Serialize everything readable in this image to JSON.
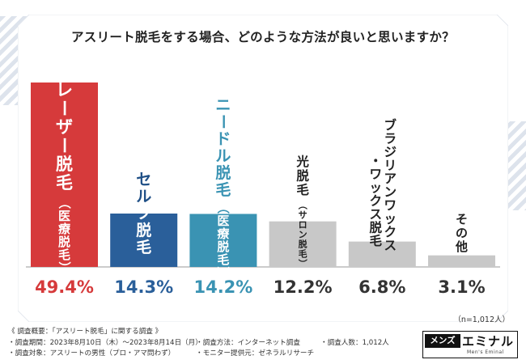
{
  "chart_data": {
    "type": "bar",
    "title": "アスリート脱毛をする場合、どのような方法が良いと思いますか？",
    "categories": [
      "レーザー脱毛",
      "セルフ脱毛",
      "ニードル脱毛",
      "光脱毛",
      "ブラジリアンワックス・ワックス脱毛",
      "その他"
    ],
    "category_labels": [
      {
        "main": "レーザー脱毛",
        "sub": "（医療脱毛）"
      },
      {
        "main": "セルフ脱毛",
        "sub": ""
      },
      {
        "main": "ニードル脱毛",
        "sub": "（医療脱毛）"
      },
      {
        "main": "光脱毛",
        "sub": "（サロン脱毛）"
      },
      {
        "main": "ブラジリアンワックス・ワックス脱毛",
        "sub": ""
      },
      {
        "main": "その他",
        "sub": ""
      }
    ],
    "values": [
      49.4,
      14.3,
      14.2,
      12.2,
      6.8,
      3.1
    ],
    "value_labels": [
      "49.4%",
      "14.3%",
      "14.2%",
      "12.2%",
      "6.8%",
      "3.1%"
    ],
    "colors": [
      "#d63a3b",
      "#2a5f9a",
      "#3a93b3",
      "#c8c8c8",
      "#c8c8c8",
      "#c8c8c8"
    ],
    "value_colors": [
      "#d63a3b",
      "#2a5f9a",
      "#3a93b3",
      "#333333",
      "#333333",
      "#333333"
    ],
    "ylim": [
      0,
      52
    ],
    "grid": false,
    "legend": "none",
    "sample_note": "（n=1,012人）"
  },
  "footer": {
    "heading": "《 調査概要：「アスリート脱毛」に関する調査 》",
    "period": "・調査期間：2023年8月10日（木）〜2023年8月14日（月）",
    "target": "・調査対象：アスリートの男性（プロ・アマ問わず）",
    "method": "・調査方法：インターネット調査",
    "monitor": "・モニター提供元：ゼネラルリサーチ",
    "count": "・調査人数：1,012人"
  },
  "logo": {
    "left": "メンズ",
    "right": "エミナル",
    "sub": "Men's Eminal"
  }
}
